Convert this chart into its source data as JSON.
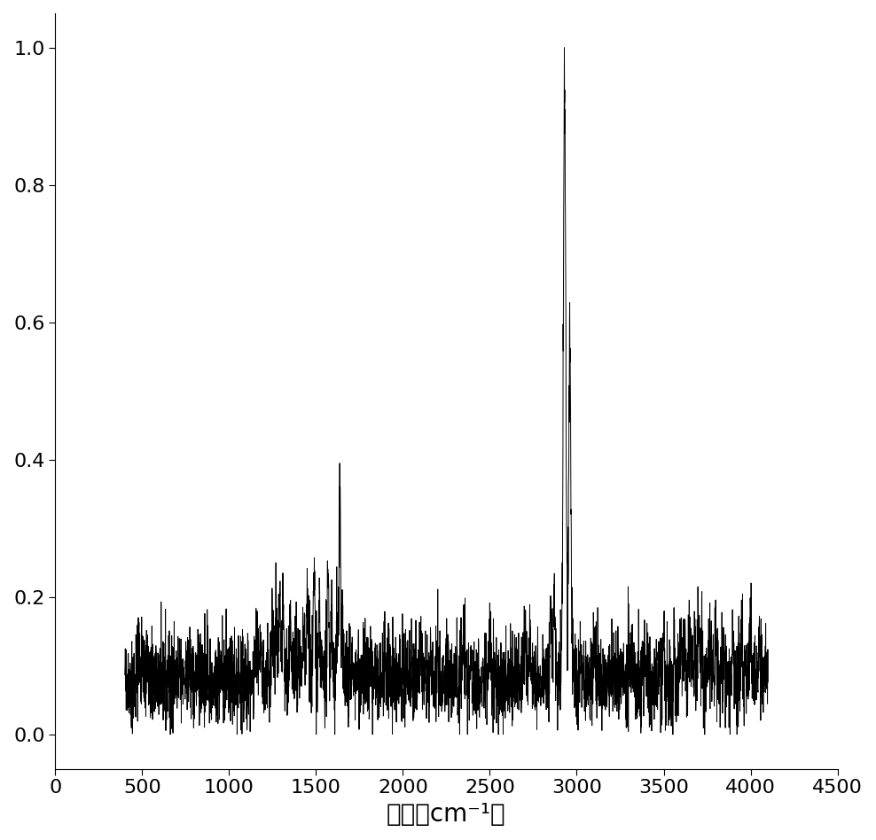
{
  "title": "",
  "xlabel": "波数（cm⁻¹）",
  "ylabel": "",
  "xlim": [
    0,
    4500
  ],
  "ylim": [
    -0.05,
    1.05
  ],
  "xticks": [
    0,
    500,
    1000,
    1500,
    2000,
    2500,
    3000,
    3500,
    4000,
    4500
  ],
  "yticks": [
    0.0,
    0.2,
    0.4,
    0.6,
    0.8,
    1.0
  ],
  "line_color": "#000000",
  "background_color": "#ffffff",
  "line_width": 0.7,
  "xlabel_fontsize": 20,
  "tick_fontsize": 16,
  "seed": 42
}
